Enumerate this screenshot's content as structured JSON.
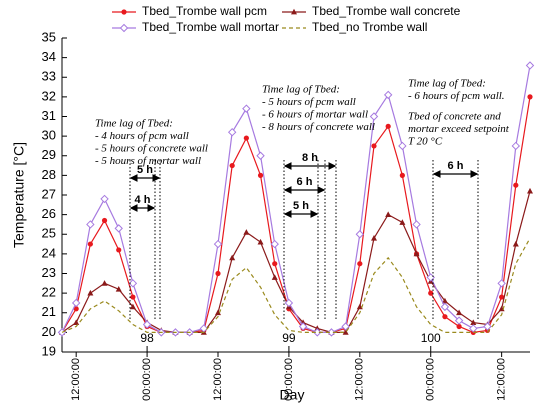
{
  "chart_data": {
    "type": "line",
    "x_label": "Day",
    "y_label": "Temperature [°C]",
    "xlim": [
      97.4,
      100.7
    ],
    "ylim": [
      19,
      35
    ],
    "yticks": [
      19,
      20,
      21,
      22,
      23,
      24,
      25,
      26,
      27,
      28,
      29,
      30,
      31,
      32,
      33,
      34,
      35
    ],
    "xticks": [
      {
        "value": 97.5,
        "label": "12:00:00"
      },
      {
        "value": 98,
        "label": "00:00:00"
      },
      {
        "value": 98.5,
        "label": "12:00:00"
      },
      {
        "value": 99,
        "label": "00:00:00"
      },
      {
        "value": 99.5,
        "label": "12:00:00"
      },
      {
        "value": 100,
        "label": "00:00:00"
      },
      {
        "value": 100.5,
        "label": "12:00:00"
      }
    ],
    "day_ticks": [
      98,
      99,
      100
    ],
    "x": [
      97.4,
      97.5,
      97.6,
      97.7,
      97.8,
      97.9,
      98.0,
      98.1,
      98.2,
      98.3,
      98.4,
      98.5,
      98.6,
      98.7,
      98.8,
      98.9,
      99.0,
      99.1,
      99.2,
      99.3,
      99.4,
      99.5,
      99.6,
      99.7,
      99.8,
      99.9,
      100.0,
      100.1,
      100.2,
      100.3,
      100.4,
      100.5,
      100.6,
      100.7
    ],
    "series": [
      {
        "name": "Tbed_Trombe wall pcm",
        "color": "#e8191e",
        "marker": "circle",
        "values": [
          20,
          21.2,
          24.5,
          25.7,
          24.2,
          21.8,
          20.3,
          20,
          20,
          20,
          20.1,
          23,
          28.5,
          29.9,
          28,
          23.5,
          21.2,
          20.2,
          20,
          20,
          20.2,
          23.5,
          29.5,
          30.5,
          28,
          24,
          22,
          20.8,
          20.3,
          20,
          20.1,
          21.8,
          27.5,
          32
        ]
      },
      {
        "name": "Tbed_Trombe wall concrete",
        "color": "#8b1a1a",
        "marker": "triangle",
        "values": [
          20,
          20.5,
          22,
          22.5,
          22.2,
          21.3,
          20.5,
          20.1,
          20,
          20,
          20,
          21,
          23.8,
          25.1,
          24.6,
          22.8,
          21.3,
          20.5,
          20.2,
          20,
          20,
          21.3,
          24.8,
          26,
          25.6,
          24,
          22.6,
          21.6,
          21,
          20.5,
          20.4,
          21.2,
          24.5,
          27.2
        ]
      },
      {
        "name": "Tbed_Trombe wall mortar",
        "color": "#a67ae0",
        "marker": "diamond",
        "values": [
          20,
          21.5,
          25.5,
          26.8,
          25.3,
          22.5,
          20.4,
          20,
          20,
          20,
          20.2,
          24.5,
          30.2,
          31.4,
          29,
          24.5,
          21.5,
          20.3,
          20,
          20,
          20.3,
          25,
          31,
          32.1,
          29.5,
          25.5,
          22.8,
          21.3,
          20.6,
          20.2,
          20.3,
          22.5,
          29.5,
          33.6
        ]
      },
      {
        "name": "Tbed_no Trombe wall",
        "color": "#9a8a1e",
        "marker": "none",
        "dash": true,
        "values": [
          20,
          20.3,
          21.2,
          21.6,
          21.1,
          20.4,
          20,
          20,
          20,
          20,
          20,
          20.8,
          22.7,
          23.3,
          22.3,
          20.9,
          20.1,
          20,
          20,
          20,
          20,
          21,
          23,
          23.8,
          22.8,
          21.3,
          20.4,
          20,
          20,
          20,
          20,
          20.9,
          23.5,
          24.8
        ]
      }
    ],
    "annotations": [
      [
        "Time lag of Tbed:",
        "- 4 hours of pcm wall",
        "- 5 hours of concrete wall",
        "- 5 hours of mortar wall"
      ],
      [
        "Time lag of Tbed:",
        "- 5 hours of pcm wall",
        "- 6 hours of mortar wall",
        "- 8 hours of concrete wall"
      ],
      [
        "Time lag of Tbed:",
        "- 6 hours of pcm wall.",
        "Tbed of concrete and",
        "mortar exceed setpoint",
        "T 20 °C"
      ]
    ],
    "lag_labels": [
      "5 h",
      "4 h",
      "8 h",
      "6 h",
      "5 h",
      "6 h"
    ]
  }
}
